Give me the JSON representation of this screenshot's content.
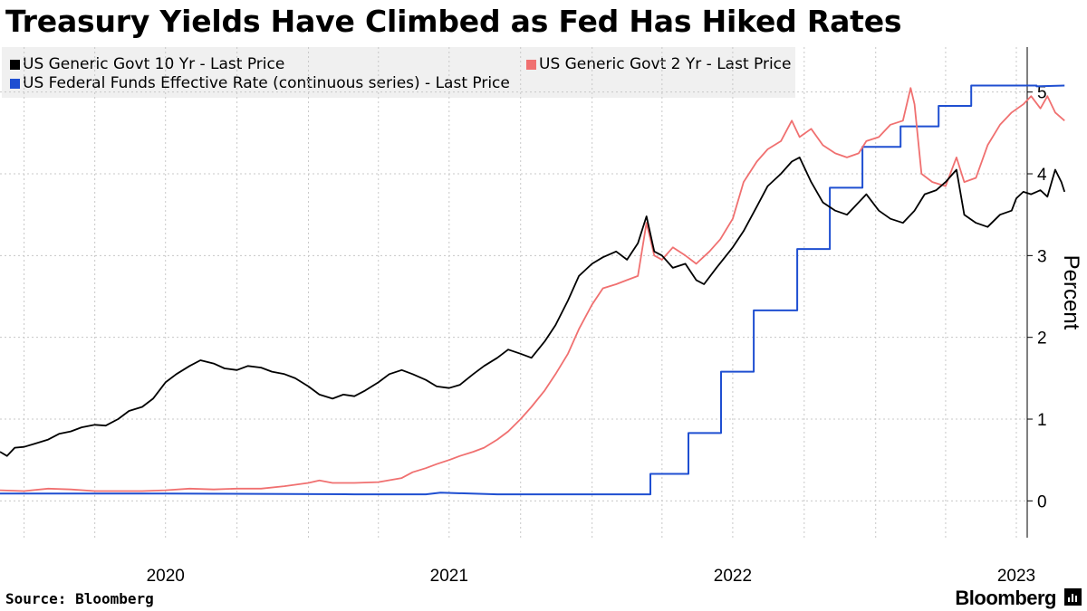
{
  "title": "Treasury Yields Have Climbed as Fed Has Hiked Rates",
  "source": "Source: Bloomberg",
  "brand": "Bloomberg",
  "brand_icon": "bloomberg-chart-icon",
  "chart_data": {
    "type": "line",
    "title": "Treasury Yields Have Climbed as Fed Has Hiked Rates",
    "ylabel": "Percent",
    "ylim": [
      -0.45,
      5.55
    ],
    "yticks": [
      0,
      1,
      2,
      3,
      4,
      5
    ],
    "xlim": [
      "2019-12-01",
      "2023-07-15"
    ],
    "x_tick_labels": [
      "2020",
      "2021",
      "2022",
      "2023"
    ],
    "x_tick_label_dates": [
      "2020-07-01",
      "2021-07-01",
      "2022-07-01",
      "2023-07-01"
    ],
    "grid": true,
    "legend_position": "top",
    "series": [
      {
        "name": "US Generic Govt 10 Yr - Last Price",
        "color": "#000000",
        "data": [
          [
            "2019-12-01",
            0.6
          ],
          [
            "2019-12-10",
            0.55
          ],
          [
            "2019-12-20",
            0.65
          ],
          [
            "2020-01-01",
            0.66
          ],
          [
            "2020-01-15",
            0.7
          ],
          [
            "2020-02-01",
            0.75
          ],
          [
            "2020-02-15",
            0.82
          ],
          [
            "2020-03-01",
            0.85
          ],
          [
            "2020-03-15",
            0.9
          ],
          [
            "2020-04-01",
            0.93
          ],
          [
            "2020-04-15",
            0.92
          ],
          [
            "2020-05-01",
            1.0
          ],
          [
            "2020-05-15",
            1.1
          ],
          [
            "2020-06-01",
            1.15
          ],
          [
            "2020-06-15",
            1.25
          ],
          [
            "2020-07-01",
            1.45
          ],
          [
            "2020-07-15",
            1.55
          ],
          [
            "2020-08-01",
            1.65
          ],
          [
            "2020-08-15",
            1.72
          ],
          [
            "2020-09-01",
            1.68
          ],
          [
            "2020-09-15",
            1.62
          ],
          [
            "2020-10-01",
            1.6
          ],
          [
            "2020-10-15",
            1.65
          ],
          [
            "2020-11-01",
            1.63
          ],
          [
            "2020-11-15",
            1.58
          ],
          [
            "2020-12-01",
            1.55
          ],
          [
            "2020-12-15",
            1.5
          ],
          [
            "2021-01-01",
            1.4
          ],
          [
            "2021-01-15",
            1.3
          ],
          [
            "2021-02-01",
            1.25
          ],
          [
            "2021-02-15",
            1.3
          ],
          [
            "2021-03-01",
            1.28
          ],
          [
            "2021-03-15",
            1.35
          ],
          [
            "2021-04-01",
            1.45
          ],
          [
            "2021-04-15",
            1.55
          ],
          [
            "2021-05-01",
            1.6
          ],
          [
            "2021-05-15",
            1.55
          ],
          [
            "2021-06-01",
            1.48
          ],
          [
            "2021-06-15",
            1.4
          ],
          [
            "2021-07-01",
            1.38
          ],
          [
            "2021-07-15",
            1.42
          ],
          [
            "2021-08-01",
            1.55
          ],
          [
            "2021-08-15",
            1.65
          ],
          [
            "2021-09-01",
            1.75
          ],
          [
            "2021-09-15",
            1.85
          ],
          [
            "2021-10-01",
            1.8
          ],
          [
            "2021-10-15",
            1.75
          ],
          [
            "2021-11-01",
            1.95
          ],
          [
            "2021-11-15",
            2.15
          ],
          [
            "2021-12-01",
            2.45
          ],
          [
            "2021-12-15",
            2.75
          ],
          [
            "2022-01-01",
            2.9
          ],
          [
            "2022-01-15",
            2.98
          ],
          [
            "2022-02-01",
            3.05
          ],
          [
            "2022-02-15",
            2.95
          ],
          [
            "2022-03-01",
            3.15
          ],
          [
            "2022-03-12",
            3.48
          ],
          [
            "2022-03-22",
            3.05
          ],
          [
            "2022-04-01",
            3.0
          ],
          [
            "2022-04-15",
            2.85
          ],
          [
            "2022-05-01",
            2.9
          ],
          [
            "2022-05-15",
            2.7
          ],
          [
            "2022-05-25",
            2.65
          ],
          [
            "2022-06-10",
            2.85
          ],
          [
            "2022-07-01",
            3.1
          ],
          [
            "2022-07-15",
            3.3
          ],
          [
            "2022-08-01",
            3.6
          ],
          [
            "2022-08-15",
            3.85
          ],
          [
            "2022-09-01",
            4.0
          ],
          [
            "2022-09-15",
            4.15
          ],
          [
            "2022-09-25",
            4.2
          ],
          [
            "2022-10-10",
            3.9
          ],
          [
            "2022-10-25",
            3.65
          ],
          [
            "2022-11-10",
            3.55
          ],
          [
            "2022-11-25",
            3.5
          ],
          [
            "2022-12-10",
            3.65
          ],
          [
            "2022-12-20",
            3.75
          ],
          [
            "2023-01-05",
            3.55
          ],
          [
            "2023-01-20",
            3.45
          ],
          [
            "2023-02-05",
            3.4
          ],
          [
            "2023-02-20",
            3.55
          ],
          [
            "2023-03-05",
            3.75
          ],
          [
            "2023-03-20",
            3.8
          ],
          [
            "2023-04-01",
            3.9
          ],
          [
            "2023-04-15",
            4.05
          ],
          [
            "2023-04-25",
            3.5
          ],
          [
            "2023-05-10",
            3.4
          ],
          [
            "2023-05-25",
            3.35
          ],
          [
            "2023-06-10",
            3.5
          ],
          [
            "2023-06-25",
            3.55
          ],
          [
            "2023-07-01",
            3.7
          ],
          [
            "2023-07-10",
            3.78
          ],
          [
            "2023-07-20",
            3.75
          ],
          [
            "2023-08-01",
            3.8
          ],
          [
            "2023-08-10",
            3.72
          ],
          [
            "2023-08-20",
            4.05
          ],
          [
            "2023-08-28",
            3.9
          ],
          [
            "2023-09-01",
            3.78
          ]
        ]
      },
      {
        "name": "US Generic Govt 2 Yr - Last Price",
        "color": "#f07070",
        "data": [
          [
            "2019-12-01",
            0.13
          ],
          [
            "2020-01-01",
            0.12
          ],
          [
            "2020-02-01",
            0.15
          ],
          [
            "2020-03-01",
            0.14
          ],
          [
            "2020-04-01",
            0.12
          ],
          [
            "2020-05-01",
            0.12
          ],
          [
            "2020-06-01",
            0.12
          ],
          [
            "2020-07-01",
            0.13
          ],
          [
            "2020-08-01",
            0.15
          ],
          [
            "2020-09-01",
            0.14
          ],
          [
            "2020-10-01",
            0.15
          ],
          [
            "2020-11-01",
            0.15
          ],
          [
            "2020-12-01",
            0.18
          ],
          [
            "2021-01-01",
            0.22
          ],
          [
            "2021-01-15",
            0.25
          ],
          [
            "2021-02-01",
            0.22
          ],
          [
            "2021-03-01",
            0.22
          ],
          [
            "2021-04-01",
            0.23
          ],
          [
            "2021-05-01",
            0.28
          ],
          [
            "2021-05-15",
            0.35
          ],
          [
            "2021-06-01",
            0.4
          ],
          [
            "2021-06-15",
            0.45
          ],
          [
            "2021-07-01",
            0.5
          ],
          [
            "2021-07-15",
            0.55
          ],
          [
            "2021-08-01",
            0.6
          ],
          [
            "2021-08-15",
            0.65
          ],
          [
            "2021-09-01",
            0.75
          ],
          [
            "2021-09-15",
            0.85
          ],
          [
            "2021-10-01",
            1.0
          ],
          [
            "2021-10-15",
            1.15
          ],
          [
            "2021-11-01",
            1.35
          ],
          [
            "2021-11-15",
            1.55
          ],
          [
            "2021-12-01",
            1.8
          ],
          [
            "2021-12-15",
            2.1
          ],
          [
            "2022-01-01",
            2.4
          ],
          [
            "2022-01-15",
            2.6
          ],
          [
            "2022-02-01",
            2.65
          ],
          [
            "2022-02-15",
            2.7
          ],
          [
            "2022-03-01",
            2.75
          ],
          [
            "2022-03-12",
            3.4
          ],
          [
            "2022-03-22",
            3.0
          ],
          [
            "2022-04-01",
            2.95
          ],
          [
            "2022-04-15",
            3.1
          ],
          [
            "2022-05-01",
            3.0
          ],
          [
            "2022-05-15",
            2.9
          ],
          [
            "2022-06-01",
            3.05
          ],
          [
            "2022-06-15",
            3.2
          ],
          [
            "2022-07-01",
            3.45
          ],
          [
            "2022-07-15",
            3.9
          ],
          [
            "2022-08-01",
            4.15
          ],
          [
            "2022-08-15",
            4.3
          ],
          [
            "2022-09-01",
            4.4
          ],
          [
            "2022-09-15",
            4.65
          ],
          [
            "2022-09-25",
            4.45
          ],
          [
            "2022-10-10",
            4.55
          ],
          [
            "2022-10-25",
            4.35
          ],
          [
            "2022-11-10",
            4.25
          ],
          [
            "2022-11-25",
            4.2
          ],
          [
            "2022-12-10",
            4.25
          ],
          [
            "2022-12-20",
            4.4
          ],
          [
            "2023-01-05",
            4.45
          ],
          [
            "2023-01-20",
            4.6
          ],
          [
            "2023-02-05",
            4.65
          ],
          [
            "2023-02-15",
            5.05
          ],
          [
            "2023-02-20",
            4.85
          ],
          [
            "2023-03-01",
            4.0
          ],
          [
            "2023-03-15",
            3.9
          ],
          [
            "2023-04-01",
            3.85
          ],
          [
            "2023-04-15",
            4.2
          ],
          [
            "2023-04-25",
            3.9
          ],
          [
            "2023-05-10",
            3.95
          ],
          [
            "2023-05-25",
            4.35
          ],
          [
            "2023-06-10",
            4.6
          ],
          [
            "2023-06-25",
            4.75
          ],
          [
            "2023-07-10",
            4.85
          ],
          [
            "2023-07-20",
            4.95
          ],
          [
            "2023-08-01",
            4.8
          ],
          [
            "2023-08-10",
            4.95
          ],
          [
            "2023-08-20",
            4.75
          ],
          [
            "2023-09-01",
            4.65
          ]
        ]
      },
      {
        "name": "US Federal Funds Effective Rate (continuous series) - Last Price",
        "color": "#1f4fd1",
        "step": true,
        "data": [
          [
            "2019-12-01",
            0.09
          ],
          [
            "2020-01-01",
            0.09
          ],
          [
            "2020-07-01",
            0.09
          ],
          [
            "2021-03-01",
            0.08
          ],
          [
            "2021-06-01",
            0.08
          ],
          [
            "2021-06-20",
            0.1
          ],
          [
            "2021-09-01",
            0.08
          ],
          [
            "2022-03-17",
            0.08
          ],
          [
            "2022-03-17",
            0.33
          ],
          [
            "2022-05-05",
            0.33
          ],
          [
            "2022-05-05",
            0.83
          ],
          [
            "2022-06-16",
            0.83
          ],
          [
            "2022-06-16",
            1.58
          ],
          [
            "2022-07-28",
            1.58
          ],
          [
            "2022-07-28",
            2.33
          ],
          [
            "2022-09-22",
            2.33
          ],
          [
            "2022-09-22",
            3.08
          ],
          [
            "2022-11-03",
            3.08
          ],
          [
            "2022-11-03",
            3.83
          ],
          [
            "2022-12-15",
            3.83
          ],
          [
            "2022-12-15",
            4.33
          ],
          [
            "2023-02-02",
            4.33
          ],
          [
            "2023-02-02",
            4.58
          ],
          [
            "2023-03-23",
            4.58
          ],
          [
            "2023-03-23",
            4.83
          ],
          [
            "2023-05-04",
            4.83
          ],
          [
            "2023-05-04",
            5.08
          ],
          [
            "2023-07-27",
            5.08
          ],
          [
            "2023-07-27",
            5.07
          ],
          [
            "2023-09-01",
            5.08
          ]
        ]
      }
    ]
  }
}
